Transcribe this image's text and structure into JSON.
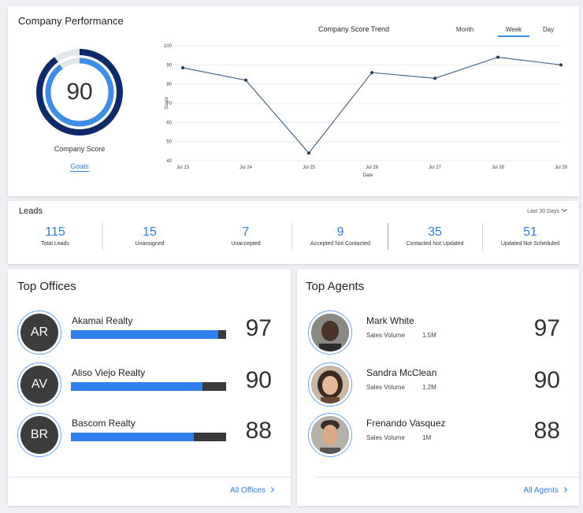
{
  "performance": {
    "title": "Company Performance",
    "score": "90",
    "score_value": 90,
    "score_label": "Company Score",
    "goals_link": "Goals",
    "trend_title": "Company Score Trend",
    "tabs": [
      "Month",
      "Week",
      "Day"
    ],
    "active_tab": "Week"
  },
  "chart_data": {
    "type": "line",
    "title": "Company Score Trend",
    "xlabel": "Date",
    "ylabel": "Score",
    "categories": [
      "Jul 23",
      "Jul 24",
      "Jul 25",
      "Jul 26",
      "Jul 27",
      "Jul 28",
      "Jul 29"
    ],
    "values": [
      88.5,
      82,
      44,
      86,
      83,
      94,
      90
    ],
    "ylim": [
      40,
      100
    ],
    "yticks": [
      40,
      50,
      60,
      70,
      80,
      90,
      100
    ],
    "grid": true,
    "colors": {
      "line": "#4a6a8e",
      "point": "#1f3b5c",
      "grid": "#ececec"
    }
  },
  "leads": {
    "title": "Leads",
    "range": "Last 30 Days",
    "stats": [
      {
        "value": "115",
        "label": "Total Leads"
      },
      {
        "value": "15",
        "label": "Unassigned"
      },
      {
        "value": "7",
        "label": "Unaccepted"
      },
      {
        "value": "9",
        "label": "Accepted Not Contacted"
      },
      {
        "value": "35",
        "label": "Contacted Not Updated"
      },
      {
        "value": "51",
        "label": "Updated Not Scheduled"
      }
    ]
  },
  "offices": {
    "title": "Top Offices",
    "items": [
      {
        "initials": "AR",
        "name": "Akamai Realty",
        "score": "97",
        "progress": 0.95
      },
      {
        "initials": "AV",
        "name": "Aliso Viejo Realty",
        "score": "90",
        "progress": 0.85
      },
      {
        "initials": "BR",
        "name": "Bascom Realty",
        "score": "88",
        "progress": 0.79
      }
    ],
    "link": "All Offices"
  },
  "agents": {
    "title": "Top Agents",
    "sales_label": "Sales Volume",
    "items": [
      {
        "name": "Mark White",
        "sales": "1.5M",
        "score": "97"
      },
      {
        "name": "Sandra McClean",
        "sales": "1.2M",
        "score": "90"
      },
      {
        "name": "Frenando Vasquez",
        "sales": "1M",
        "score": "88"
      }
    ],
    "link": "All Agents"
  },
  "colors": {
    "accent": "#2f80ed",
    "gauge_outer": "#0d2a6b",
    "gauge_inner": "#3c8de8",
    "bar_track": "#3a3a3a"
  }
}
